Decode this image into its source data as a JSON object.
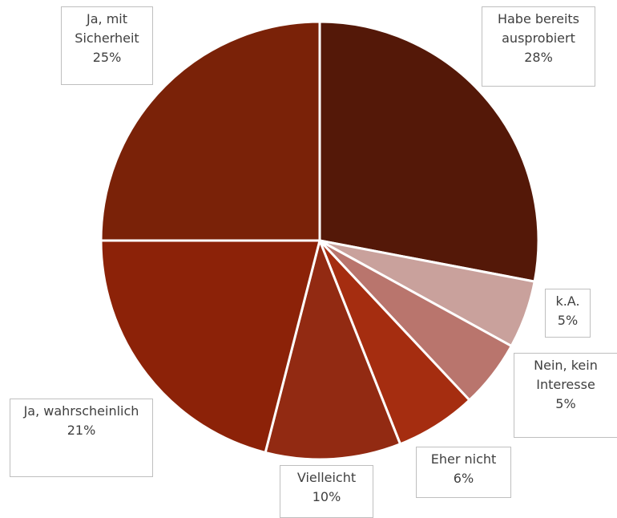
{
  "chart_data": {
    "type": "pie",
    "categories": [
      "Habe bereits ausprobiert",
      "k.A.",
      "Nein, kein Interesse",
      "Eher nicht",
      "Vielleicht",
      "Ja, wahrscheinlich",
      "Ja, mit Sicherheit"
    ],
    "values": [
      28,
      5,
      5,
      6,
      10,
      21,
      25
    ],
    "value_labels": [
      "28%",
      "5%",
      "5%",
      "6%",
      "10%",
      "21%",
      "25%"
    ],
    "colors": [
      "#541808",
      "#c9a19c",
      "#b9756d",
      "#a52d10",
      "#922a12",
      "#8c2208",
      "#7a2208"
    ]
  }
}
